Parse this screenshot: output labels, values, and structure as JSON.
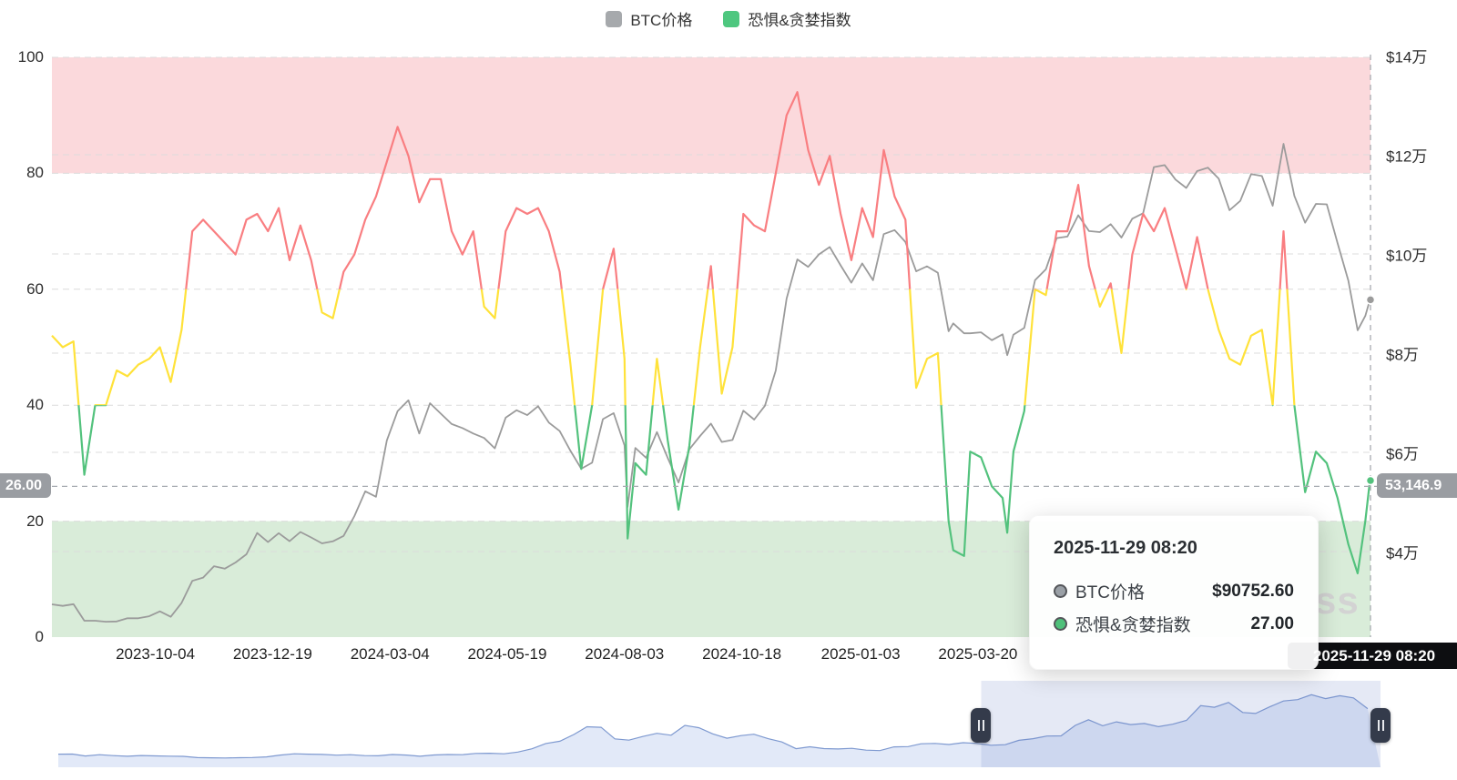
{
  "palette": {
    "btc_line": "#9b9b9b",
    "fng_green": "#53c27d",
    "fng_yellow": "#ffe23a",
    "fng_red": "#f97e81",
    "band_red_bg": "#fbd9dc",
    "band_green_bg": "#d9ecd9",
    "grid": "#dcdcdc",
    "crosshair": "#a7abb1",
    "pointer_badge_bg": "#9a9da2",
    "x_badge_bg": "#0d0e11",
    "minimap_line": "#7e99d0",
    "minimap_fill": "#e2e9f8",
    "minimap_window": "rgba(110,135,200,0.18)",
    "handle_bg": "#343b4b"
  },
  "legend": {
    "items": [
      {
        "label": "BTC价格",
        "color": "#a6a9ac"
      },
      {
        "label": "恐惧&贪婪指数",
        "color": "#4ec77f"
      }
    ]
  },
  "axes": {
    "left_ticks": [
      "100",
      "80",
      "60",
      "40",
      "20",
      "0"
    ],
    "right_ticks": [
      "$14万",
      "$12万",
      "$10万",
      "$8万",
      "$6万",
      "$4万"
    ],
    "x_ticks": [
      "2023-10-04",
      "2023-12-19",
      "2024-03-04",
      "2024-05-19",
      "2024-08-03",
      "2024-10-18",
      "2025-01-03",
      "2025-03-20"
    ]
  },
  "axis_pointer": {
    "y_left_label": "26.00",
    "y_right_label": "53,146.9",
    "x_label": "2025-11-29 08:20"
  },
  "tooltip": {
    "title": "2025-11-29 08:20",
    "rows": [
      {
        "label": "BTC价格",
        "value": "$90752.60",
        "marker_color": "#9aa0a6"
      },
      {
        "label": "恐惧&贪婪指数",
        "value": "27.00",
        "marker_color": "#4fc07a"
      }
    ]
  },
  "watermark": "ss",
  "chart_data": {
    "type": "line",
    "title": "BTC价格 与 恐惧&贪婪指数",
    "legend_position": "top-center",
    "grid": true,
    "y_left": {
      "label": "恐惧&贪婪指数",
      "range": [
        0,
        100
      ],
      "ticks": [
        100,
        80,
        60,
        40,
        20,
        0
      ]
    },
    "y_right": {
      "label": "BTC价格",
      "tick_values_usd": [
        140000,
        120000,
        100000,
        80000,
        60000,
        40000
      ]
    },
    "bands": [
      {
        "axis": "left",
        "from": 80,
        "to": 100,
        "meaning": "极度贪婪区",
        "color": "#fbd9dc"
      },
      {
        "axis": "left",
        "from": 0,
        "to": 20,
        "meaning": "极度恐惧区",
        "color": "#d9ecd9"
      }
    ],
    "fng_color_thresholds": {
      "green_below": 40,
      "yellow_between": [
        40,
        60
      ],
      "red_above": 60
    },
    "x_range": [
      "2023-07-29",
      "2025-11-29 08:20"
    ],
    "hover_point": {
      "date": "2025-11-29 08:20",
      "btc_price_usd": 90752.6,
      "fear_greed_index": 27.0,
      "pointer_y_left": 26.0,
      "pointer_y_right_usd": 53146.9
    },
    "columns": [
      "date",
      "btc_price_usd",
      "fear_greed_index"
    ],
    "rows": [
      [
        "2023-07-29",
        29350,
        52
      ],
      [
        "2023-08-05",
        29050,
        50
      ],
      [
        "2023-08-12",
        29400,
        51
      ],
      [
        "2023-08-19",
        26050,
        28
      ],
      [
        "2023-08-26",
        26050,
        40
      ],
      [
        "2023-09-02",
        25850,
        40
      ],
      [
        "2023-09-09",
        25900,
        46
      ],
      [
        "2023-09-16",
        26550,
        45
      ],
      [
        "2023-09-23",
        26550,
        47
      ],
      [
        "2023-09-30",
        26950,
        48
      ],
      [
        "2023-10-07",
        27950,
        50
      ],
      [
        "2023-10-14",
        26850,
        44
      ],
      [
        "2023-10-21",
        29650,
        53
      ],
      [
        "2023-10-28",
        34100,
        70
      ],
      [
        "2023-11-04",
        34750,
        72
      ],
      [
        "2023-11-11",
        37050,
        70
      ],
      [
        "2023-11-18",
        36550,
        68
      ],
      [
        "2023-11-25",
        37800,
        66
      ],
      [
        "2023-12-02",
        39450,
        72
      ],
      [
        "2023-12-09",
        43750,
        73
      ],
      [
        "2023-12-16",
        41900,
        70
      ],
      [
        "2023-12-23",
        43700,
        74
      ],
      [
        "2023-12-30",
        42100,
        65
      ],
      [
        "2024-01-06",
        43950,
        71
      ],
      [
        "2024-01-13",
        42850,
        65
      ],
      [
        "2024-01-20",
        41650,
        56
      ],
      [
        "2024-01-27",
        42050,
        55
      ],
      [
        "2024-02-03",
        43150,
        63
      ],
      [
        "2024-02-10",
        47150,
        66
      ],
      [
        "2024-02-17",
        52150,
        72
      ],
      [
        "2024-02-24",
        51050,
        76
      ],
      [
        "2024-03-02",
        62400,
        82
      ],
      [
        "2024-03-09",
        68300,
        88
      ],
      [
        "2024-03-16",
        70500,
        83
      ],
      [
        "2024-03-23",
        63800,
        75
      ],
      [
        "2024-03-30",
        69900,
        79
      ],
      [
        "2024-04-06",
        67800,
        79
      ],
      [
        "2024-04-13",
        65700,
        70
      ],
      [
        "2024-04-20",
        64900,
        66
      ],
      [
        "2024-04-27",
        63800,
        70
      ],
      [
        "2024-05-04",
        62900,
        57
      ],
      [
        "2024-05-11",
        60800,
        55
      ],
      [
        "2024-05-18",
        67000,
        70
      ],
      [
        "2024-05-25",
        68500,
        74
      ],
      [
        "2024-06-01",
        67500,
        73
      ],
      [
        "2024-06-08",
        69300,
        74
      ],
      [
        "2024-06-15",
        66000,
        70
      ],
      [
        "2024-06-22",
        64300,
        63
      ],
      [
        "2024-06-29",
        60300,
        47
      ],
      [
        "2024-07-06",
        56700,
        29
      ],
      [
        "2024-07-13",
        57900,
        40
      ],
      [
        "2024-07-20",
        66700,
        60
      ],
      [
        "2024-07-27",
        67900,
        67
      ],
      [
        "2024-08-03",
        61400,
        48
      ],
      [
        "2024-08-05",
        49000,
        17
      ],
      [
        "2024-08-10",
        60900,
        30
      ],
      [
        "2024-08-17",
        58900,
        28
      ],
      [
        "2024-08-24",
        64100,
        48
      ],
      [
        "2024-08-31",
        58900,
        34
      ],
      [
        "2024-09-07",
        53900,
        22
      ],
      [
        "2024-09-14",
        60600,
        33
      ],
      [
        "2024-09-21",
        63300,
        50
      ],
      [
        "2024-09-28",
        65800,
        64
      ],
      [
        "2024-10-05",
        62100,
        42
      ],
      [
        "2024-10-12",
        62500,
        50
      ],
      [
        "2024-10-19",
        68400,
        73
      ],
      [
        "2024-10-26",
        66600,
        71
      ],
      [
        "2024-11-02",
        69400,
        70
      ],
      [
        "2024-11-09",
        76500,
        80
      ],
      [
        "2024-11-16",
        91000,
        90
      ],
      [
        "2024-11-23",
        98900,
        94
      ],
      [
        "2024-11-30",
        97400,
        84
      ],
      [
        "2024-12-07",
        99900,
        78
      ],
      [
        "2024-12-14",
        101400,
        83
      ],
      [
        "2024-12-21",
        97700,
        73
      ],
      [
        "2024-12-28",
        94200,
        65
      ],
      [
        "2025-01-04",
        98100,
        74
      ],
      [
        "2025-01-11",
        94700,
        69
      ],
      [
        "2025-01-18",
        104000,
        84
      ],
      [
        "2025-01-25",
        104800,
        76
      ],
      [
        "2025-02-01",
        102400,
        72
      ],
      [
        "2025-02-08",
        96500,
        43
      ],
      [
        "2025-02-15",
        97500,
        48
      ],
      [
        "2025-02-22",
        96200,
        49
      ],
      [
        "2025-03-01",
        84400,
        20
      ],
      [
        "2025-03-04",
        86000,
        15
      ],
      [
        "2025-03-11",
        84000,
        14
      ],
      [
        "2025-03-15",
        84000,
        32
      ],
      [
        "2025-03-22",
        84200,
        31
      ],
      [
        "2025-03-29",
        82600,
        26
      ],
      [
        "2025-04-05",
        83800,
        24
      ],
      [
        "2025-04-08",
        79600,
        18
      ],
      [
        "2025-04-12",
        83700,
        32
      ],
      [
        "2025-04-19",
        85100,
        39
      ],
      [
        "2025-04-26",
        94700,
        60
      ],
      [
        "2025-05-03",
        96900,
        59
      ],
      [
        "2025-05-10",
        103200,
        70
      ],
      [
        "2025-05-17",
        103500,
        70
      ],
      [
        "2025-05-24",
        107800,
        78
      ],
      [
        "2025-05-31",
        104600,
        64
      ],
      [
        "2025-06-07",
        104400,
        57
      ],
      [
        "2025-06-14",
        106000,
        61
      ],
      [
        "2025-06-21",
        103300,
        49
      ],
      [
        "2025-06-28",
        107100,
        66
      ],
      [
        "2025-07-05",
        108200,
        73
      ],
      [
        "2025-07-12",
        117500,
        70
      ],
      [
        "2025-07-19",
        117900,
        74
      ],
      [
        "2025-07-26",
        115000,
        67
      ],
      [
        "2025-08-02",
        113300,
        60
      ],
      [
        "2025-08-09",
        116700,
        69
      ],
      [
        "2025-08-16",
        117400,
        60
      ],
      [
        "2025-08-23",
        115200,
        53
      ],
      [
        "2025-08-30",
        108800,
        48
      ],
      [
        "2025-09-06",
        110700,
        47
      ],
      [
        "2025-09-13",
        116100,
        52
      ],
      [
        "2025-09-20",
        115700,
        53
      ],
      [
        "2025-09-27",
        109700,
        40
      ],
      [
        "2025-10-04",
        122200,
        70
      ],
      [
        "2025-10-11",
        111700,
        40
      ],
      [
        "2025-10-18",
        106300,
        25
      ],
      [
        "2025-10-25",
        110100,
        32
      ],
      [
        "2025-11-01",
        110000,
        30
      ],
      [
        "2025-11-08",
        102200,
        24
      ],
      [
        "2025-11-15",
        94600,
        16
      ],
      [
        "2025-11-21",
        84600,
        11
      ],
      [
        "2025-11-26",
        87500,
        20
      ],
      [
        "2025-11-29",
        90752.6,
        27
      ]
    ],
    "minimap": {
      "description": "BTC价格全历史缩略图 (dataZoom)",
      "window_fraction": [
        0.698,
        1.0
      ],
      "columns": [
        "month",
        "btc_price_usd"
      ],
      "rows": [
        [
          "2018-01",
          10200
        ],
        [
          "2018-02",
          10300
        ],
        [
          "2018-03",
          6900
        ],
        [
          "2018-04",
          9200
        ],
        [
          "2018-05",
          7500
        ],
        [
          "2018-06",
          6400
        ],
        [
          "2018-07",
          7700
        ],
        [
          "2018-08",
          7000
        ],
        [
          "2018-09",
          6600
        ],
        [
          "2018-10",
          6300
        ],
        [
          "2018-11",
          4000
        ],
        [
          "2018-12",
          3700
        ],
        [
          "2019-01",
          3400
        ],
        [
          "2019-02",
          3800
        ],
        [
          "2019-03",
          4100
        ],
        [
          "2019-04",
          5300
        ],
        [
          "2019-05",
          8500
        ],
        [
          "2019-06",
          10800
        ],
        [
          "2019-07",
          10100
        ],
        [
          "2019-08",
          9600
        ],
        [
          "2019-09",
          8300
        ],
        [
          "2019-10",
          9200
        ],
        [
          "2019-11",
          7600
        ],
        [
          "2019-12",
          7200
        ],
        [
          "2020-01",
          9400
        ],
        [
          "2020-02",
          8500
        ],
        [
          "2020-03",
          6400
        ],
        [
          "2020-04",
          8600
        ],
        [
          "2020-05",
          9500
        ],
        [
          "2020-06",
          9100
        ],
        [
          "2020-07",
          11400
        ],
        [
          "2020-08",
          11700
        ],
        [
          "2020-09",
          10800
        ],
        [
          "2020-10",
          13800
        ],
        [
          "2020-11",
          19700
        ],
        [
          "2020-12",
          29000
        ],
        [
          "2021-01",
          33100
        ],
        [
          "2021-02",
          45200
        ],
        [
          "2021-03",
          58800
        ],
        [
          "2021-04",
          57800
        ],
        [
          "2021-05",
          37300
        ],
        [
          "2021-06",
          35000
        ],
        [
          "2021-07",
          41500
        ],
        [
          "2021-08",
          47200
        ],
        [
          "2021-09",
          43800
        ],
        [
          "2021-10",
          61300
        ],
        [
          "2021-11",
          57000
        ],
        [
          "2021-12",
          46200
        ],
        [
          "2022-01",
          38500
        ],
        [
          "2022-02",
          43200
        ],
        [
          "2022-03",
          45500
        ],
        [
          "2022-04",
          37600
        ],
        [
          "2022-05",
          31800
        ],
        [
          "2022-06",
          19900
        ],
        [
          "2022-07",
          23300
        ],
        [
          "2022-08",
          20000
        ],
        [
          "2022-09",
          19400
        ],
        [
          "2022-10",
          20500
        ],
        [
          "2022-11",
          17200
        ],
        [
          "2022-12",
          16500
        ],
        [
          "2023-01",
          23100
        ],
        [
          "2023-02",
          23500
        ],
        [
          "2023-03",
          28500
        ],
        [
          "2023-04",
          29200
        ],
        [
          "2023-05",
          27200
        ],
        [
          "2023-06",
          30500
        ],
        [
          "2023-07",
          29200
        ],
        [
          "2023-08",
          26000
        ],
        [
          "2023-09",
          26900
        ],
        [
          "2023-10",
          34700
        ],
        [
          "2023-11",
          37700
        ],
        [
          "2023-12",
          42300
        ],
        [
          "2024-01",
          42600
        ],
        [
          "2024-02",
          61200
        ],
        [
          "2024-03",
          71300
        ],
        [
          "2024-04",
          60600
        ],
        [
          "2024-05",
          67500
        ],
        [
          "2024-06",
          62700
        ],
        [
          "2024-07",
          64600
        ],
        [
          "2024-08",
          59000
        ],
        [
          "2024-09",
          63300
        ],
        [
          "2024-10",
          70200
        ],
        [
          "2024-11",
          96400
        ],
        [
          "2024-12",
          93400
        ],
        [
          "2025-01",
          102100
        ],
        [
          "2025-02",
          84300
        ],
        [
          "2025-03",
          82500
        ],
        [
          "2025-04",
          94200
        ],
        [
          "2025-05",
          104600
        ],
        [
          "2025-06",
          107100
        ],
        [
          "2025-07",
          115800
        ],
        [
          "2025-08",
          108800
        ],
        [
          "2025-09",
          114000
        ],
        [
          "2025-10",
          110100
        ],
        [
          "2025-11",
          91000
        ]
      ]
    }
  }
}
